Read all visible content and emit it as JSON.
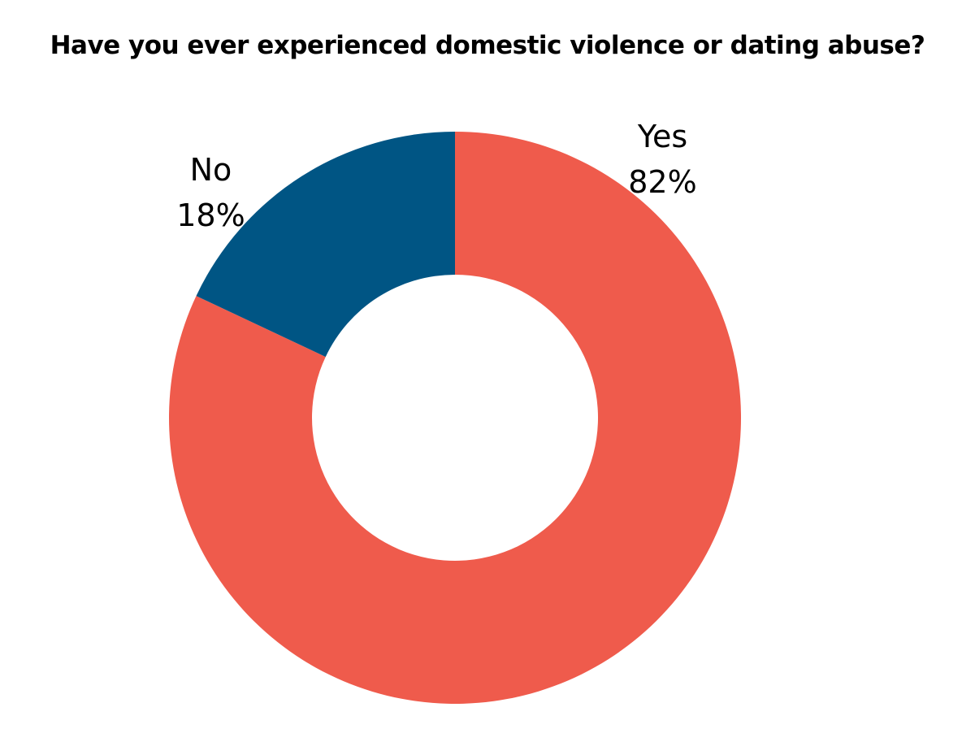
{
  "chart_data": {
    "type": "pie",
    "variant": "donut",
    "title": "Have you ever experienced domestic violence or dating abuse?",
    "slices": [
      {
        "label": "Yes",
        "value": 82,
        "value_label": "82%",
        "color": "#ef5b4c"
      },
      {
        "label": "No",
        "value": 18,
        "value_label": "18%",
        "color": "#005584"
      }
    ],
    "start_angle_deg": 0,
    "direction": "clockwise",
    "legend": "none"
  }
}
